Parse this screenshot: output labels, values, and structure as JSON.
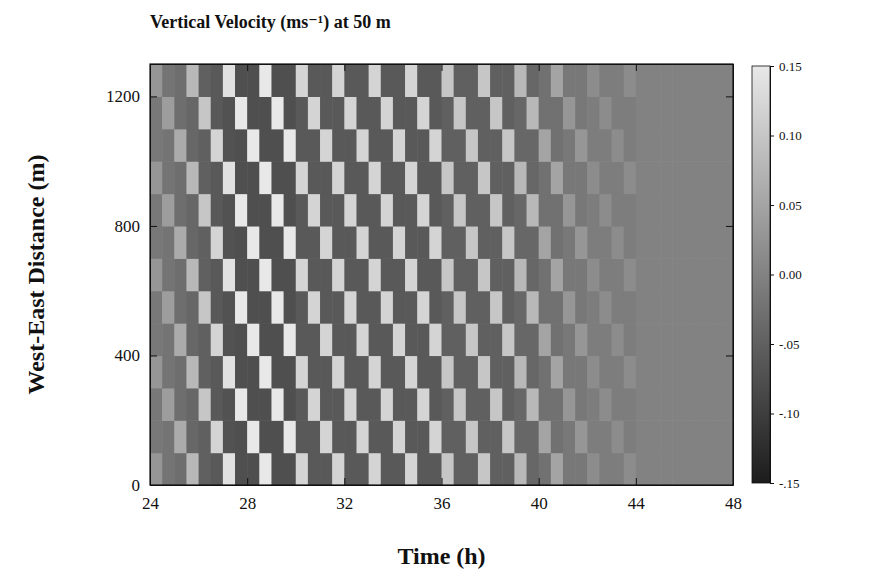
{
  "chart_data": {
    "type": "heatmap",
    "title": "Vertical Velocity (ms⁻¹) at 50 m",
    "xlabel": "Time (h)",
    "ylabel": "West-East Distance (m)",
    "xlim": [
      24,
      48
    ],
    "xticks": [
      24,
      28,
      32,
      36,
      40,
      44,
      48
    ],
    "ylim": [
      0,
      1300
    ],
    "yticks": [
      0,
      400,
      800,
      1200
    ],
    "colorbar": {
      "range": [
        -0.15,
        0.15
      ],
      "ticks": [
        0.15,
        {
          "value": 0.1,
          "label": "0.10"
        },
        0.05,
        {
          "value": 0,
          "label": "0.00"
        },
        {
          "value": -0.05,
          "label": "-.05"
        },
        {
          "value": -0.1,
          "label": "-.10"
        },
        {
          "value": -0.15,
          "label": "-.15"
        }
      ]
    },
    "x": [
      24.25,
      24.75,
      25.25,
      25.75,
      26.25,
      26.75,
      27.25,
      27.75,
      28.25,
      28.75,
      29.25,
      29.75,
      30.25,
      30.75,
      31.25,
      31.75,
      32.25,
      32.75,
      33.25,
      33.75,
      34.25,
      34.75,
      35.25,
      35.75,
      36.25,
      36.75,
      37.25,
      37.75,
      38.25,
      38.75,
      39.25,
      39.75,
      40.25,
      40.75,
      41.25,
      41.75,
      42.25,
      42.75,
      43.25,
      43.75,
      44.25,
      44.75,
      45.25,
      45.75,
      46.25,
      46.75,
      47.25,
      47.75
    ],
    "y": [
      50,
      150,
      250,
      350,
      450,
      550,
      650,
      750,
      850,
      950,
      1050,
      1150,
      1250
    ],
    "cells": [
      [
        0.03,
        -0.02,
        -0.03,
        0.08,
        -0.05,
        -0.06,
        0.14,
        -0.075,
        -0.075,
        0.15,
        -0.075,
        -0.075,
        0.12,
        -0.06,
        -0.06,
        0.12,
        -0.06,
        -0.06,
        0.12,
        -0.06,
        -0.06,
        0.12,
        -0.06,
        -0.06,
        0.1,
        -0.05,
        -0.05,
        0.1,
        -0.05,
        -0.05,
        0.08,
        -0.04,
        -0.025,
        0.05,
        -0.015,
        -0.015,
        0.015,
        -0.0075,
        -0.0075,
        0.015,
        0,
        0,
        0,
        0,
        0,
        0,
        0,
        0
      ],
      [
        -0.015,
        -0.02,
        0.06,
        -0.04,
        -0.05,
        0.12,
        -0.07,
        -0.075,
        0.15,
        -0.075,
        -0.075,
        0.15,
        -0.06,
        -0.06,
        0.12,
        -0.06,
        -0.06,
        0.12,
        -0.06,
        -0.06,
        0.12,
        -0.06,
        -0.06,
        0.12,
        -0.05,
        -0.05,
        0.1,
        -0.05,
        -0.05,
        0.1,
        -0.04,
        -0.04,
        0.05,
        -0.025,
        -0.015,
        0.03,
        -0.0075,
        -0.0075,
        0.015,
        -0.0075,
        0,
        0,
        0,
        0,
        0,
        0,
        0,
        0
      ],
      [
        -0.015,
        0.04,
        -0.03,
        -0.04,
        0.1,
        -0.06,
        -0.07,
        0.15,
        -0.075,
        -0.075,
        0.15,
        -0.075,
        -0.06,
        0.12,
        -0.06,
        -0.06,
        0.12,
        -0.06,
        -0.06,
        0.12,
        -0.06,
        -0.06,
        0.12,
        -0.06,
        -0.05,
        0.1,
        -0.05,
        -0.05,
        0.1,
        -0.05,
        -0.04,
        0.08,
        -0.025,
        -0.025,
        0.03,
        -0.015,
        -0.0075,
        0.015,
        -0.0075,
        -0.0075,
        0,
        0,
        0,
        0,
        0,
        0,
        0,
        0
      ],
      [
        0.03,
        -0.02,
        -0.03,
        0.08,
        -0.05,
        -0.06,
        0.14,
        -0.075,
        -0.075,
        0.15,
        -0.075,
        -0.075,
        0.12,
        -0.06,
        -0.06,
        0.12,
        -0.06,
        -0.06,
        0.12,
        -0.06,
        -0.06,
        0.12,
        -0.06,
        -0.06,
        0.1,
        -0.05,
        -0.05,
        0.1,
        -0.05,
        -0.05,
        0.08,
        -0.04,
        -0.025,
        0.05,
        -0.015,
        -0.015,
        0.015,
        -0.0075,
        -0.0075,
        0.015,
        0,
        0,
        0,
        0,
        0,
        0,
        0,
        0
      ],
      [
        -0.015,
        -0.02,
        0.06,
        -0.04,
        -0.05,
        0.12,
        -0.07,
        -0.075,
        0.15,
        -0.075,
        -0.075,
        0.15,
        -0.06,
        -0.06,
        0.12,
        -0.06,
        -0.06,
        0.12,
        -0.06,
        -0.06,
        0.12,
        -0.06,
        -0.06,
        0.12,
        -0.05,
        -0.05,
        0.1,
        -0.05,
        -0.05,
        0.1,
        -0.04,
        -0.04,
        0.05,
        -0.025,
        -0.015,
        0.03,
        -0.0075,
        -0.0075,
        0.015,
        -0.0075,
        0,
        0,
        0,
        0,
        0,
        0,
        0,
        0
      ],
      [
        -0.015,
        0.04,
        -0.03,
        -0.04,
        0.1,
        -0.06,
        -0.07,
        0.15,
        -0.075,
        -0.075,
        0.15,
        -0.075,
        -0.06,
        0.12,
        -0.06,
        -0.06,
        0.12,
        -0.06,
        -0.06,
        0.12,
        -0.06,
        -0.06,
        0.12,
        -0.06,
        -0.05,
        0.1,
        -0.05,
        -0.05,
        0.1,
        -0.05,
        -0.04,
        0.08,
        -0.025,
        -0.025,
        0.03,
        -0.015,
        -0.0075,
        0.015,
        -0.0075,
        -0.0075,
        0,
        0,
        0,
        0,
        0,
        0,
        0,
        0
      ],
      [
        0.03,
        -0.02,
        -0.03,
        0.08,
        -0.05,
        -0.06,
        0.14,
        -0.075,
        -0.075,
        0.15,
        -0.075,
        -0.075,
        0.12,
        -0.06,
        -0.06,
        0.12,
        -0.06,
        -0.06,
        0.12,
        -0.06,
        -0.06,
        0.12,
        -0.06,
        -0.06,
        0.1,
        -0.05,
        -0.05,
        0.1,
        -0.05,
        -0.05,
        0.08,
        -0.04,
        -0.025,
        0.05,
        -0.015,
        -0.015,
        0.015,
        -0.0075,
        -0.0075,
        0.015,
        0,
        0,
        0,
        0,
        0,
        0,
        0,
        0
      ],
      [
        -0.015,
        -0.02,
        0.06,
        -0.04,
        -0.05,
        0.12,
        -0.07,
        -0.075,
        0.15,
        -0.075,
        -0.075,
        0.15,
        -0.06,
        -0.06,
        0.12,
        -0.06,
        -0.06,
        0.12,
        -0.06,
        -0.06,
        0.12,
        -0.06,
        -0.06,
        0.12,
        -0.05,
        -0.05,
        0.1,
        -0.05,
        -0.05,
        0.1,
        -0.04,
        -0.04,
        0.05,
        -0.025,
        -0.015,
        0.03,
        -0.0075,
        -0.0075,
        0.015,
        -0.0075,
        0,
        0,
        0,
        0,
        0,
        0,
        0,
        0
      ],
      [
        -0.015,
        0.04,
        -0.03,
        -0.04,
        0.1,
        -0.06,
        -0.07,
        0.15,
        -0.075,
        -0.075,
        0.15,
        -0.075,
        -0.06,
        0.12,
        -0.06,
        -0.06,
        0.12,
        -0.06,
        -0.06,
        0.12,
        -0.06,
        -0.06,
        0.12,
        -0.06,
        -0.05,
        0.1,
        -0.05,
        -0.05,
        0.1,
        -0.05,
        -0.04,
        0.08,
        -0.025,
        -0.025,
        0.03,
        -0.015,
        -0.0075,
        0.015,
        -0.0075,
        -0.0075,
        0,
        0,
        0,
        0,
        0,
        0,
        0,
        0
      ],
      [
        0.03,
        -0.02,
        -0.03,
        0.08,
        -0.05,
        -0.06,
        0.14,
        -0.075,
        -0.075,
        0.15,
        -0.075,
        -0.075,
        0.12,
        -0.06,
        -0.06,
        0.12,
        -0.06,
        -0.06,
        0.12,
        -0.06,
        -0.06,
        0.12,
        -0.06,
        -0.06,
        0.1,
        -0.05,
        -0.05,
        0.1,
        -0.05,
        -0.05,
        0.08,
        -0.04,
        -0.025,
        0.05,
        -0.015,
        -0.015,
        0.015,
        -0.0075,
        -0.0075,
        0.015,
        0,
        0,
        0,
        0,
        0,
        0,
        0,
        0
      ],
      [
        -0.015,
        -0.02,
        0.06,
        -0.04,
        -0.05,
        0.12,
        -0.07,
        -0.075,
        0.15,
        -0.075,
        -0.075,
        0.15,
        -0.06,
        -0.06,
        0.12,
        -0.06,
        -0.06,
        0.12,
        -0.06,
        -0.06,
        0.12,
        -0.06,
        -0.06,
        0.12,
        -0.05,
        -0.05,
        0.1,
        -0.05,
        -0.05,
        0.1,
        -0.04,
        -0.04,
        0.05,
        -0.025,
        -0.015,
        0.03,
        -0.0075,
        -0.0075,
        0.015,
        -0.0075,
        0,
        0,
        0,
        0,
        0,
        0,
        0,
        0
      ],
      [
        -0.015,
        0.04,
        -0.03,
        -0.04,
        0.1,
        -0.06,
        -0.07,
        0.15,
        -0.075,
        -0.075,
        0.15,
        -0.075,
        -0.06,
        0.12,
        -0.06,
        -0.06,
        0.12,
        -0.06,
        -0.06,
        0.12,
        -0.06,
        -0.06,
        0.12,
        -0.06,
        -0.05,
        0.1,
        -0.05,
        -0.05,
        0.1,
        -0.05,
        -0.04,
        0.08,
        -0.025,
        -0.025,
        0.03,
        -0.015,
        -0.0075,
        0.015,
        -0.0075,
        -0.0075,
        0,
        0,
        0,
        0,
        0,
        0,
        0,
        0
      ],
      [
        0.03,
        -0.02,
        -0.03,
        0.08,
        -0.05,
        -0.06,
        0.14,
        -0.075,
        -0.075,
        0.15,
        -0.075,
        -0.075,
        0.12,
        -0.06,
        -0.06,
        0.12,
        -0.06,
        -0.06,
        0.12,
        -0.06,
        -0.06,
        0.12,
        -0.06,
        -0.06,
        0.1,
        -0.05,
        -0.05,
        0.1,
        -0.05,
        -0.05,
        0.08,
        -0.04,
        -0.025,
        0.05,
        -0.015,
        -0.015,
        0.015,
        -0.0075,
        -0.0075,
        0.015,
        0,
        0,
        0,
        0,
        0,
        0,
        0,
        0
      ]
    ]
  }
}
